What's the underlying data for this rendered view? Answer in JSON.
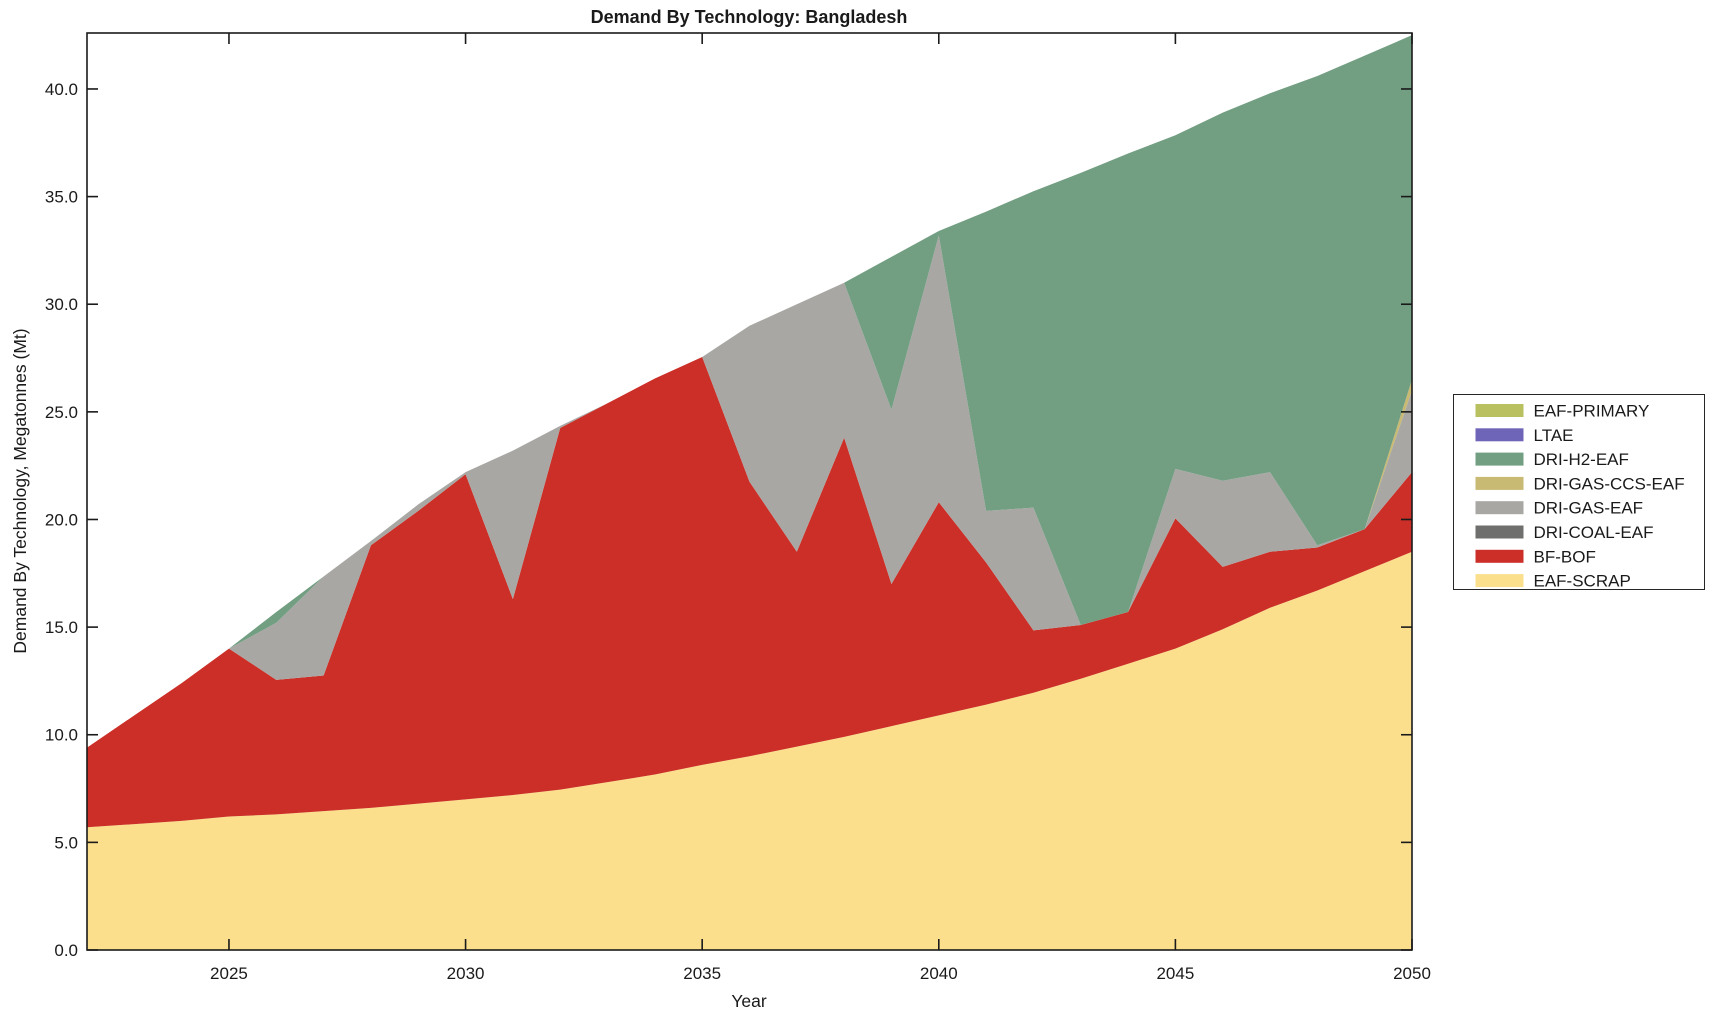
{
  "figure": {
    "title": "Demand By Technology: Bangladesh",
    "xlabel": "Year",
    "ylabel": "Demand By Technology, Megatonnes (Mt)"
  },
  "chart_data": {
    "type": "area",
    "stacked": true,
    "title": "Demand By Technology: Bangladesh",
    "xlabel": "Year",
    "ylabel": "Demand By Technology, Megatonnes (Mt)",
    "grid": false,
    "legend_position": "right-outside",
    "x": [
      2022,
      2023,
      2024,
      2025,
      2026,
      2027,
      2028,
      2029,
      2030,
      2031,
      2032,
      2033,
      2034,
      2035,
      2036,
      2037,
      2038,
      2039,
      2040,
      2041,
      2042,
      2043,
      2044,
      2045,
      2046,
      2047,
      2048,
      2049,
      2050
    ],
    "xlim": [
      2022,
      2050
    ],
    "ylim": [
      0,
      42.6
    ],
    "xticks": {
      "values": [
        2025,
        2030,
        2035,
        2040,
        2045,
        2050
      ],
      "labels": [
        "2025",
        "2030",
        "2035",
        "2040",
        "2045",
        "2050"
      ]
    },
    "yticks": {
      "values": [
        0,
        5,
        10,
        15,
        20,
        25,
        30,
        35,
        40
      ],
      "labels": [
        "0.0",
        "5.0",
        "10.0",
        "15.0",
        "20.0",
        "25.0",
        "30.0",
        "35.0",
        "40.0"
      ]
    },
    "units": "Mt",
    "series_bottom_to_top": [
      {
        "name": "EAF-SCRAP",
        "color": "#fbdf8d",
        "values": [
          5.7,
          5.85,
          6.0,
          6.2,
          6.3,
          6.45,
          6.6,
          6.8,
          7.0,
          7.2,
          7.45,
          7.8,
          8.15,
          8.6,
          9.0,
          9.45,
          9.9,
          10.4,
          10.9,
          11.4,
          11.95,
          12.6,
          13.3,
          14.0,
          14.9,
          15.9,
          16.7,
          17.6,
          18.5
        ]
      },
      {
        "name": "BF-BOF",
        "color": "#cb2f27",
        "values": [
          3.7,
          5.05,
          6.4,
          7.8,
          6.25,
          6.3,
          12.2,
          13.6,
          15.1,
          9.1,
          16.8,
          17.6,
          18.4,
          18.95,
          12.75,
          9.05,
          13.9,
          6.6,
          9.9,
          6.6,
          2.9,
          2.5,
          2.4,
          6.05,
          2.9,
          2.6,
          2.0,
          1.95,
          3.7
        ]
      },
      {
        "name": "DRI-COAL-EAF",
        "color": "#6f6f6d",
        "values": [
          0,
          0,
          0,
          0,
          0,
          0,
          0,
          0,
          0,
          0,
          0,
          0,
          0,
          0,
          0,
          0,
          0,
          0,
          0,
          0,
          0,
          0,
          0,
          0,
          0,
          0,
          0,
          0,
          0
        ]
      },
      {
        "name": "DRI-GAS-EAF",
        "color": "#a8a7a4",
        "values": [
          0,
          0,
          0,
          0,
          2.65,
          4.6,
          0.2,
          0.3,
          0.1,
          6.9,
          0.1,
          0,
          0,
          0,
          7.25,
          11.5,
          7.2,
          8.1,
          12.4,
          2.4,
          5.7,
          0,
          0,
          2.3,
          4.0,
          3.7,
          0.1,
          0,
          3.8
        ]
      },
      {
        "name": "DRI-GAS-CCS-EAF",
        "color": "#c8ba73",
        "values": [
          0,
          0,
          0,
          0,
          0,
          0,
          0,
          0,
          0,
          0,
          0,
          0,
          0,
          0,
          0,
          0,
          0,
          0,
          0,
          0,
          0,
          0,
          0,
          0,
          0,
          0,
          0,
          0,
          0.5
        ]
      },
      {
        "name": "DRI-H2-EAF",
        "color": "#729e82",
        "values": [
          0,
          0,
          0,
          0,
          0.5,
          0,
          0,
          0,
          0,
          0,
          0,
          0,
          0,
          0,
          0,
          0,
          0,
          7.1,
          0.2,
          13.9,
          14.7,
          21.0,
          21.3,
          15.5,
          17.1,
          17.6,
          21.8,
          22.0,
          16.0
        ]
      },
      {
        "name": "LTAE",
        "color": "#6f65b8",
        "values": [
          0,
          0,
          0,
          0,
          0,
          0,
          0,
          0,
          0,
          0,
          0,
          0,
          0,
          0,
          0,
          0,
          0,
          0,
          0,
          0,
          0,
          0,
          0,
          0,
          0,
          0,
          0,
          0,
          0
        ]
      },
      {
        "name": "EAF-PRIMARY",
        "color": "#b8c05f",
        "values": [
          0,
          0,
          0,
          0,
          0,
          0,
          0,
          0,
          0,
          0,
          0,
          0,
          0,
          0,
          0,
          0,
          0,
          0,
          0,
          0,
          0,
          0,
          0,
          0,
          0,
          0,
          0,
          0,
          0
        ]
      }
    ],
    "legend_top_to_bottom": [
      "EAF-PRIMARY",
      "LTAE",
      "DRI-H2-EAF",
      "DRI-GAS-CCS-EAF",
      "DRI-GAS-EAF",
      "DRI-COAL-EAF",
      "BF-BOF",
      "EAF-SCRAP"
    ]
  }
}
